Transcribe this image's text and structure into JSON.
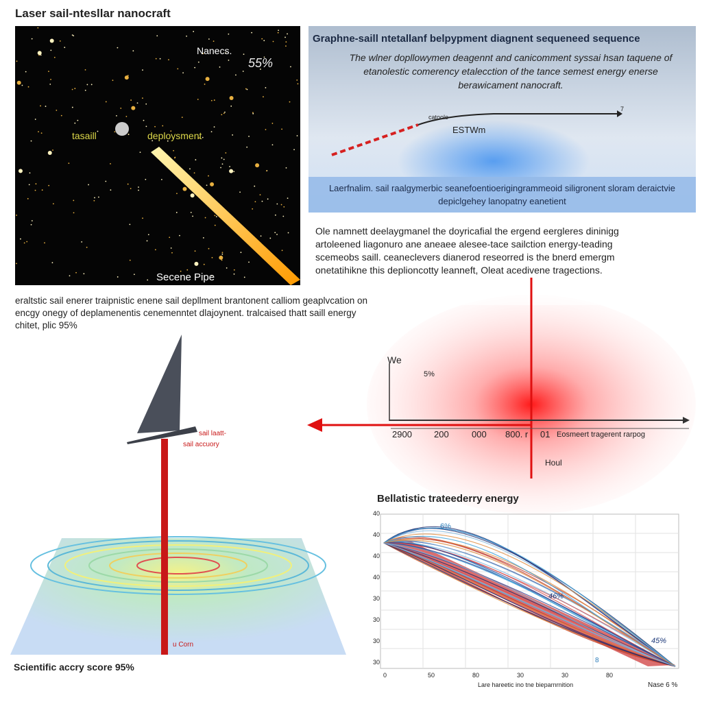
{
  "header": {
    "title": "Laser sail-ntesllar nanocraft"
  },
  "space_panel": {
    "labels": [
      "Nanecs.",
      "55%",
      "tasaill",
      "deploysment",
      "Secene Pipe"
    ]
  },
  "info_panel": {
    "title": "Graphne-saill ntetallanf belpypment diagnent sequeneed sequence",
    "body": "The wlner dopllowymen deagennt and canicomment syssai hsan taquene of etanolestic comerency etalecction of the tance semest energy enerse berawicament nanocraft.",
    "curve_labels": [
      "catoolo",
      "ESTWm",
      "7"
    ],
    "band_text": "Laerfnalim. sail raalgymerbic seanefoentioerigingrammeoid siligronent sloram deraictvie depiclgehey lanopatny eanetient"
  },
  "paragraph_right": "Ole namnett deelaygmanel the doyricafial the ergend eergleres dininigg artoleened liagonuro ane aneaee alesee-tace sailction energy-teading scemeobs saill. ceaneclevers dianerod reseorred is the bnerd emergm onetatihikne this deplioncotty leanneft, Oleat acedivene tragections.",
  "paragraph_left": "eraltstic sail enerer traipnistic enene sail depllment brantonent calliom geaplvcation on encgy onegy of deplamenentis cenemenntet dlajoynent. tralcaised thatt saill energy chitet, plic 95%",
  "energy_plot": {
    "y_label": "We",
    "marker": "5%",
    "ticks": [
      "2900",
      "200",
      "000",
      "800. r",
      "01"
    ],
    "axis_label": "Eosmeert tragerent rarpog",
    "below_label": "Houl"
  },
  "sail_diagram": {
    "labels": [
      "sail laatt-",
      "sail accuory",
      "u Corn"
    ],
    "score": "Scientific accry score 95%"
  },
  "trajectory_chart": {
    "title": "Bellatistic trateederry energy",
    "annotations": [
      "6%",
      "46%",
      "45%",
      "8"
    ],
    "yticks": [
      "40",
      "40",
      "40",
      "40",
      "30",
      "30",
      "30",
      "30"
    ],
    "xticks": [
      "0",
      "50",
      "80",
      "30",
      "30",
      "80"
    ],
    "x_label": "Lare hareetic ino tne bieparnrnition",
    "corner_label": "Nase 6 %"
  }
}
